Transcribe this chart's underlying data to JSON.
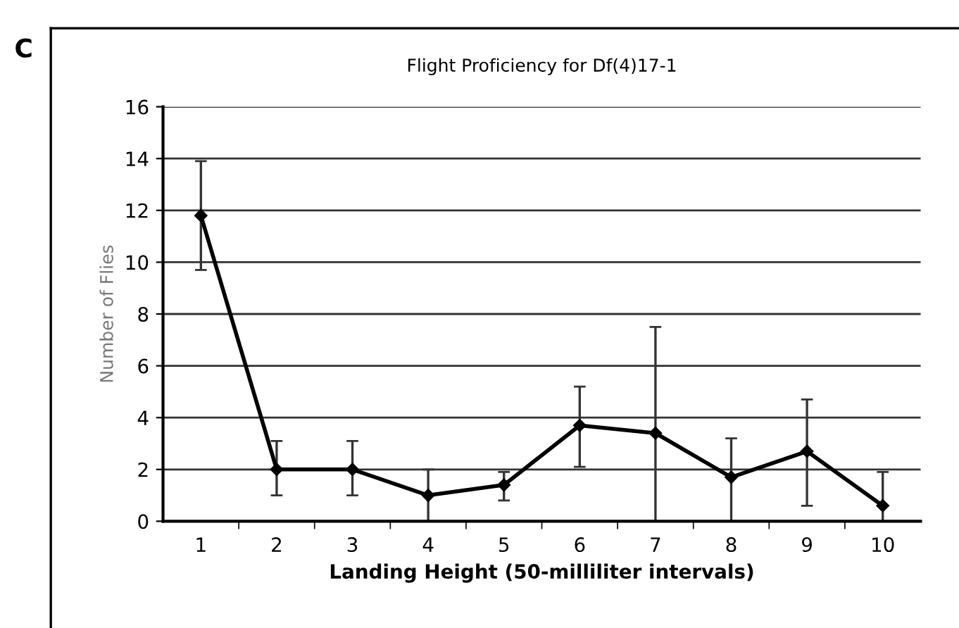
{
  "chart_data": {
    "type": "line",
    "title": "Flight Proficiency for Df(4)17-1",
    "xlabel": "Landing Height (50-milliliter intervals)",
    "ylabel": "Number of Flies",
    "annotations": [
      "C"
    ],
    "categories": [
      "1",
      "2",
      "3",
      "4",
      "5",
      "6",
      "7",
      "8",
      "9",
      "10"
    ],
    "series": [
      {
        "color": "#000000",
        "values": [
          11.8,
          2,
          2,
          1,
          1.4,
          3.7,
          3.4,
          1.7,
          2.7,
          0.6
        ],
        "errors": [
          [
            9.7,
            13.9
          ],
          [
            1,
            3.1
          ],
          [
            1,
            3.1
          ],
          [
            0,
            2
          ],
          [
            0.8,
            1.9
          ],
          [
            2.1,
            5.2
          ],
          [
            0,
            7.5
          ],
          [
            0,
            3.2
          ],
          [
            0.6,
            4.7
          ],
          [
            0,
            1.9
          ]
        ]
      }
    ],
    "ylim": [
      0,
      16
    ],
    "yticks": [
      0,
      2,
      4,
      6,
      8,
      10,
      12,
      14,
      16
    ],
    "grid": "y",
    "marker": "diamond",
    "line_style": "solid"
  }
}
